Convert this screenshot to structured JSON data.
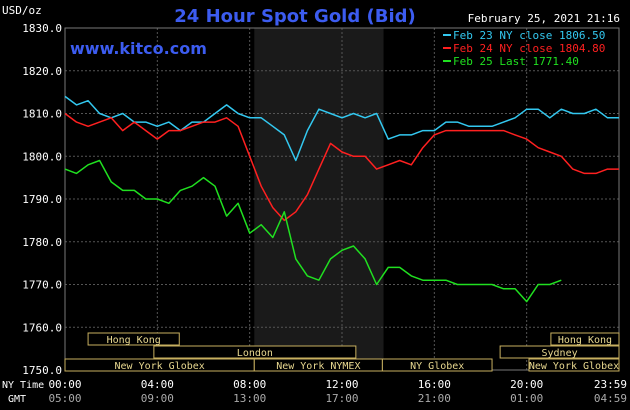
{
  "chart_data": {
    "type": "line",
    "title": "24 Hour Spot Gold (Bid)",
    "ylabel": "USD/oz",
    "date_stamp": "February 25, 2021 21:16",
    "watermark": "www.kitco.com",
    "ylim": [
      1750,
      1830
    ],
    "yticks": [
      1750,
      1760,
      1770,
      1780,
      1790,
      1800,
      1810,
      1820,
      1830
    ],
    "ytick_labels": [
      "1750.0",
      "1760.0",
      "1770.0",
      "1780.0",
      "1790.0",
      "1800.0",
      "1810.0",
      "1820.0",
      "1830.0"
    ],
    "xlim": [
      0,
      24
    ],
    "ny_time_label": "NY Time",
    "gmt_label": "GMT",
    "ny_ticks": [
      "00:00",
      "04:00",
      "08:00",
      "12:00",
      "16:00",
      "20:00",
      "23:59"
    ],
    "gmt_ticks": [
      "05:00",
      "09:00",
      "13:00",
      "17:00",
      "21:00",
      "01:00",
      "04:59"
    ],
    "tick_hours": [
      0,
      4,
      8,
      12,
      16,
      20,
      24
    ],
    "grid": true,
    "shaded_region": [
      8.2,
      13.8
    ],
    "legend_position": "top-right",
    "series": [
      {
        "name": "Feb 23 NY close 1806.50",
        "color": "#33c8f0",
        "x": [
          0,
          0.5,
          1,
          1.5,
          2,
          2.5,
          3,
          3.5,
          4,
          4.5,
          5,
          5.5,
          6,
          6.5,
          7,
          7.5,
          8,
          8.5,
          9,
          9.5,
          10,
          10.5,
          11,
          11.5,
          12,
          12.5,
          13,
          13.5,
          14,
          14.5,
          15,
          15.5,
          16,
          16.5,
          17,
          17.5,
          18,
          18.5,
          19,
          19.5,
          20,
          20.5,
          21,
          21.5,
          22,
          22.5,
          23,
          23.5,
          24
        ],
        "y": [
          1814,
          1812,
          1813,
          1810,
          1809,
          1810,
          1808,
          1808,
          1807,
          1808,
          1806,
          1808,
          1808,
          1810,
          1812,
          1810,
          1809,
          1809,
          1807,
          1805,
          1799,
          1806,
          1811,
          1810,
          1809,
          1810,
          1809,
          1810,
          1804,
          1805,
          1805,
          1806,
          1806,
          1808,
          1808,
          1807,
          1807,
          1807,
          1808,
          1809,
          1811,
          1811,
          1809,
          1811,
          1810,
          1810,
          1811,
          1809,
          1809
        ]
      },
      {
        "name": "Feb 24 NY close 1804.80",
        "color": "#ff2020",
        "x": [
          0,
          0.5,
          1,
          1.5,
          2,
          2.5,
          3,
          3.5,
          4,
          4.5,
          5,
          5.5,
          6,
          6.5,
          7,
          7.5,
          8,
          8.5,
          9,
          9.5,
          10,
          10.5,
          11,
          11.5,
          12,
          12.5,
          13,
          13.5,
          14,
          14.5,
          15,
          15.5,
          16,
          16.5,
          17,
          17.5,
          18,
          18.5,
          19,
          19.5,
          20,
          20.5,
          21,
          21.5,
          22,
          22.5,
          23,
          23.5,
          24
        ],
        "y": [
          1810,
          1808,
          1807,
          1808,
          1809,
          1806,
          1808,
          1806,
          1804,
          1806,
          1806,
          1807,
          1808,
          1808,
          1809,
          1807,
          1800,
          1793,
          1788,
          1785,
          1787,
          1791,
          1797,
          1803,
          1801,
          1800,
          1800,
          1797,
          1798,
          1799,
          1798,
          1802,
          1805,
          1806,
          1806,
          1806,
          1806,
          1806,
          1806,
          1805,
          1804,
          1802,
          1801,
          1800,
          1797,
          1796,
          1796,
          1797,
          1797
        ]
      },
      {
        "name": "Feb 25 Last 1771.40",
        "color": "#20e020",
        "x": [
          0,
          0.5,
          1,
          1.5,
          2,
          2.5,
          3,
          3.5,
          4,
          4.5,
          5,
          5.5,
          6,
          6.5,
          7,
          7.5,
          8,
          8.5,
          9,
          9.5,
          10,
          10.5,
          11,
          11.5,
          12,
          12.5,
          13,
          13.5,
          14,
          14.5,
          15,
          15.5,
          16,
          16.5,
          17,
          17.5,
          18,
          18.5,
          19,
          19.5,
          20,
          20.5,
          21,
          21.5
        ],
        "y": [
          1797,
          1796,
          1798,
          1799,
          1794,
          1792,
          1792,
          1790,
          1790,
          1789,
          1792,
          1793,
          1795,
          1793,
          1786,
          1789,
          1782,
          1784,
          1781,
          1787,
          1776,
          1772,
          1771,
          1776,
          1778,
          1779,
          1776,
          1770,
          1774,
          1774,
          1772,
          1771,
          1771,
          1771,
          1770,
          1770,
          1770,
          1770,
          1769,
          1769,
          1766,
          1770,
          1770,
          1771
        ]
      }
    ],
    "sessions": [
      {
        "label": "Hong Kong",
        "start": 1.0,
        "end": 4.95,
        "row": 0
      },
      {
        "label": "Hong Kong",
        "start": 21.05,
        "end": 24.0,
        "row": 0
      },
      {
        "label": "London",
        "start": 3.85,
        "end": 12.6,
        "row": 1
      },
      {
        "label": "Sydney",
        "start": 18.85,
        "end": 24.0,
        "row": 1
      },
      {
        "label": "New York Globex",
        "start": 0.0,
        "end": 8.2,
        "row": 2
      },
      {
        "label": "New York NYMEX",
        "start": 8.2,
        "end": 13.75,
        "row": 2
      },
      {
        "label": "NY Globex",
        "start": 13.75,
        "end": 18.5,
        "row": 2
      },
      {
        "label": "New York Globex",
        "start": 20.1,
        "end": 24.0,
        "row": 2
      }
    ]
  }
}
